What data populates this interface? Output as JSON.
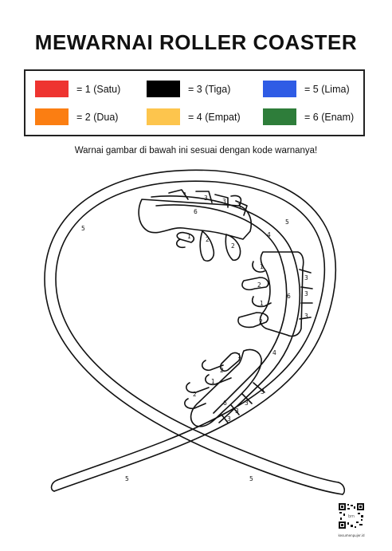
{
  "title": "MEWARNAI ROLLER COASTER",
  "legend": [
    {
      "label": "= 1 (Satu)",
      "color": "#ee3430"
    },
    {
      "label": "= 3 (Tiga)",
      "color": "#000000"
    },
    {
      "label": "= 5 (Lima)",
      "color": "#2f5ce5"
    },
    {
      "label": "= 2 (Dua)",
      "color": "#fb7e12"
    },
    {
      "label": "= 4 (Empat)",
      "color": "#fdc54d"
    },
    {
      "label": "= 6 (Enam)",
      "color": "#2e7d3a"
    }
  ],
  "instruction": "Warnai gambar di bawah ini sesuai dengan kode warnanya!",
  "numbers": {
    "five": "5",
    "four": "4",
    "three": "3",
    "two": "2",
    "one": "1",
    "six": "6"
  },
  "qr": {
    "center_text": "bm",
    "caption": "kesumenpujer.id"
  }
}
